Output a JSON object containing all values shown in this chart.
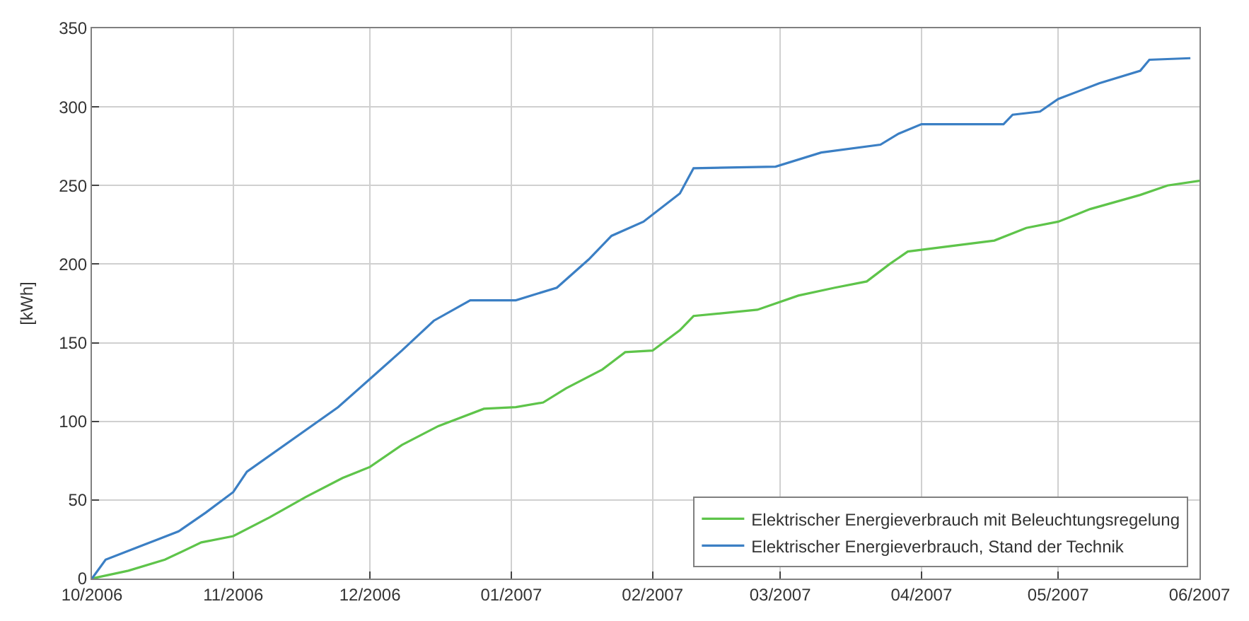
{
  "chart_data": {
    "type": "line",
    "ylabel": "[kWh]",
    "xlim": [
      "2006-10-01",
      "2007-06-01"
    ],
    "xticks": [
      {
        "value": "2006-10-01",
        "label": "10/2006"
      },
      {
        "value": "2006-11-01",
        "label": "11/2006"
      },
      {
        "value": "2006-12-01",
        "label": "12/2006"
      },
      {
        "value": "2007-01-01",
        "label": "01/2007"
      },
      {
        "value": "2007-02-01",
        "label": "02/2007"
      },
      {
        "value": "2007-03-01",
        "label": "03/2007"
      },
      {
        "value": "2007-04-01",
        "label": "04/2007"
      },
      {
        "value": "2007-05-01",
        "label": "05/2007"
      },
      {
        "value": "2007-06-01",
        "label": "06/2007"
      }
    ],
    "ylim": [
      0,
      350
    ],
    "yticks": [
      0,
      50,
      100,
      150,
      200,
      250,
      300,
      350
    ],
    "grid": true,
    "legend": "bottom right",
    "marker": "none",
    "line_style": "solid",
    "series": [
      {
        "name": "Elektrischer Energieverbrauch mit Beleuchtungsregelung",
        "color": "#5ec44a",
        "x": [
          "2006-10-01",
          "2006-10-09",
          "2006-10-17",
          "2006-10-25",
          "2006-11-01",
          "2006-11-09",
          "2006-11-17",
          "2006-11-25",
          "2006-12-01",
          "2006-12-08",
          "2006-12-16",
          "2006-12-26",
          "2007-01-02",
          "2007-01-08",
          "2007-01-13",
          "2007-01-21",
          "2007-01-26",
          "2007-02-01",
          "2007-02-07",
          "2007-02-10",
          "2007-02-24",
          "2007-03-05",
          "2007-03-13",
          "2007-03-20",
          "2007-03-25",
          "2007-03-29",
          "2007-04-17",
          "2007-04-24",
          "2007-05-01",
          "2007-05-08",
          "2007-05-19",
          "2007-05-25",
          "2007-06-01"
        ],
        "values": [
          0,
          5,
          12,
          23,
          27,
          39,
          52,
          64,
          71,
          85,
          97,
          108,
          109,
          112,
          121,
          133,
          144,
          145,
          158,
          167,
          171,
          180,
          185,
          189,
          200,
          208,
          215,
          223,
          227,
          235,
          244,
          250,
          253
        ]
      },
      {
        "name": "Elektrischer Energieverbrauch, Stand der Technik",
        "color": "#3b7fc4",
        "x": [
          "2006-10-01",
          "2006-10-04",
          "2006-10-12",
          "2006-10-20",
          "2006-10-26",
          "2006-11-01",
          "2006-11-04",
          "2006-11-24",
          "2006-12-01",
          "2006-12-08",
          "2006-12-15",
          "2006-12-23",
          "2007-01-02",
          "2007-01-11",
          "2007-01-18",
          "2007-01-23",
          "2007-01-30",
          "2007-02-07",
          "2007-02-10",
          "2007-02-28",
          "2007-03-10",
          "2007-03-23",
          "2007-03-27",
          "2007-04-01",
          "2007-04-19",
          "2007-04-21",
          "2007-04-27",
          "2007-05-01",
          "2007-05-10",
          "2007-05-19",
          "2007-05-21",
          "2007-05-30"
        ],
        "values": [
          0,
          12,
          21,
          30,
          42,
          55,
          68,
          109,
          127,
          145,
          164,
          177,
          177,
          185,
          203,
          218,
          227,
          245,
          261,
          262,
          271,
          276,
          283,
          289,
          289,
          295,
          297,
          305,
          315,
          323,
          330,
          331
        ]
      }
    ]
  }
}
